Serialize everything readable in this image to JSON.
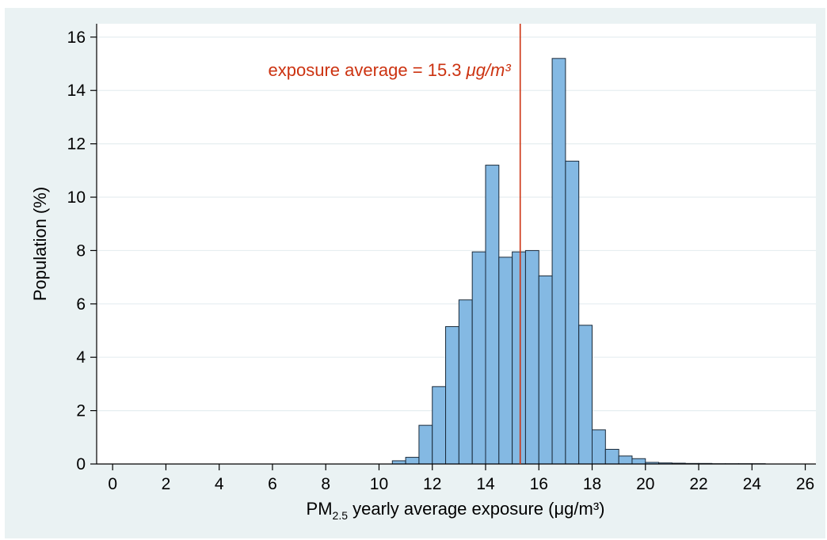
{
  "chart_data": {
    "type": "bar",
    "title": "",
    "xlabel_main": "PM",
    "xlabel_sub": "2.5",
    "xlabel_rest": " yearly average exposure (μg/m³)",
    "ylabel": "Population (%)",
    "xlim": [
      -0.6,
      26.4
    ],
    "ylim": [
      0,
      16.5
    ],
    "xticks": [
      0,
      2,
      4,
      6,
      8,
      10,
      12,
      14,
      16,
      18,
      20,
      22,
      24,
      26
    ],
    "yticks": [
      0,
      2,
      4,
      6,
      8,
      10,
      12,
      14,
      16
    ],
    "grid": true,
    "bin_width": 0.5,
    "bins": [
      {
        "x0": 10.5,
        "value": 0.12
      },
      {
        "x0": 11.0,
        "value": 0.25
      },
      {
        "x0": 11.5,
        "value": 1.45
      },
      {
        "x0": 12.0,
        "value": 2.9
      },
      {
        "x0": 12.5,
        "value": 5.15
      },
      {
        "x0": 13.0,
        "value": 6.15
      },
      {
        "x0": 13.5,
        "value": 7.95
      },
      {
        "x0": 14.0,
        "value": 11.2
      },
      {
        "x0": 14.5,
        "value": 7.75
      },
      {
        "x0": 15.0,
        "value": 7.95
      },
      {
        "x0": 15.5,
        "value": 8.0
      },
      {
        "x0": 16.0,
        "value": 7.05
      },
      {
        "x0": 16.5,
        "value": 15.2
      },
      {
        "x0": 17.0,
        "value": 11.35
      },
      {
        "x0": 17.5,
        "value": 5.2
      },
      {
        "x0": 18.0,
        "value": 1.28
      },
      {
        "x0": 18.5,
        "value": 0.55
      },
      {
        "x0": 19.0,
        "value": 0.3
      },
      {
        "x0": 19.5,
        "value": 0.2
      },
      {
        "x0": 20.0,
        "value": 0.06
      },
      {
        "x0": 20.5,
        "value": 0.04
      },
      {
        "x0": 21.0,
        "value": 0.03
      },
      {
        "x0": 21.5,
        "value": 0.02
      },
      {
        "x0": 22.0,
        "value": 0.02
      },
      {
        "x0": 22.5,
        "value": 0.01
      },
      {
        "x0": 23.0,
        "value": 0.01
      },
      {
        "x0": 23.5,
        "value": 0.01
      },
      {
        "x0": 24.0,
        "value": 0.01
      }
    ],
    "reference_line": {
      "x": 15.3,
      "label_prefix": "exposure average = 15.3 ",
      "label_unit": "μg/m³",
      "color": "#cc3311"
    },
    "colors": {
      "bar_fill": "#84b9e3",
      "bar_stroke": "#1a2a3a",
      "plot_bg": "#ffffff",
      "outer_bg": "#eaf2f3",
      "grid": "#e6eef0"
    }
  }
}
